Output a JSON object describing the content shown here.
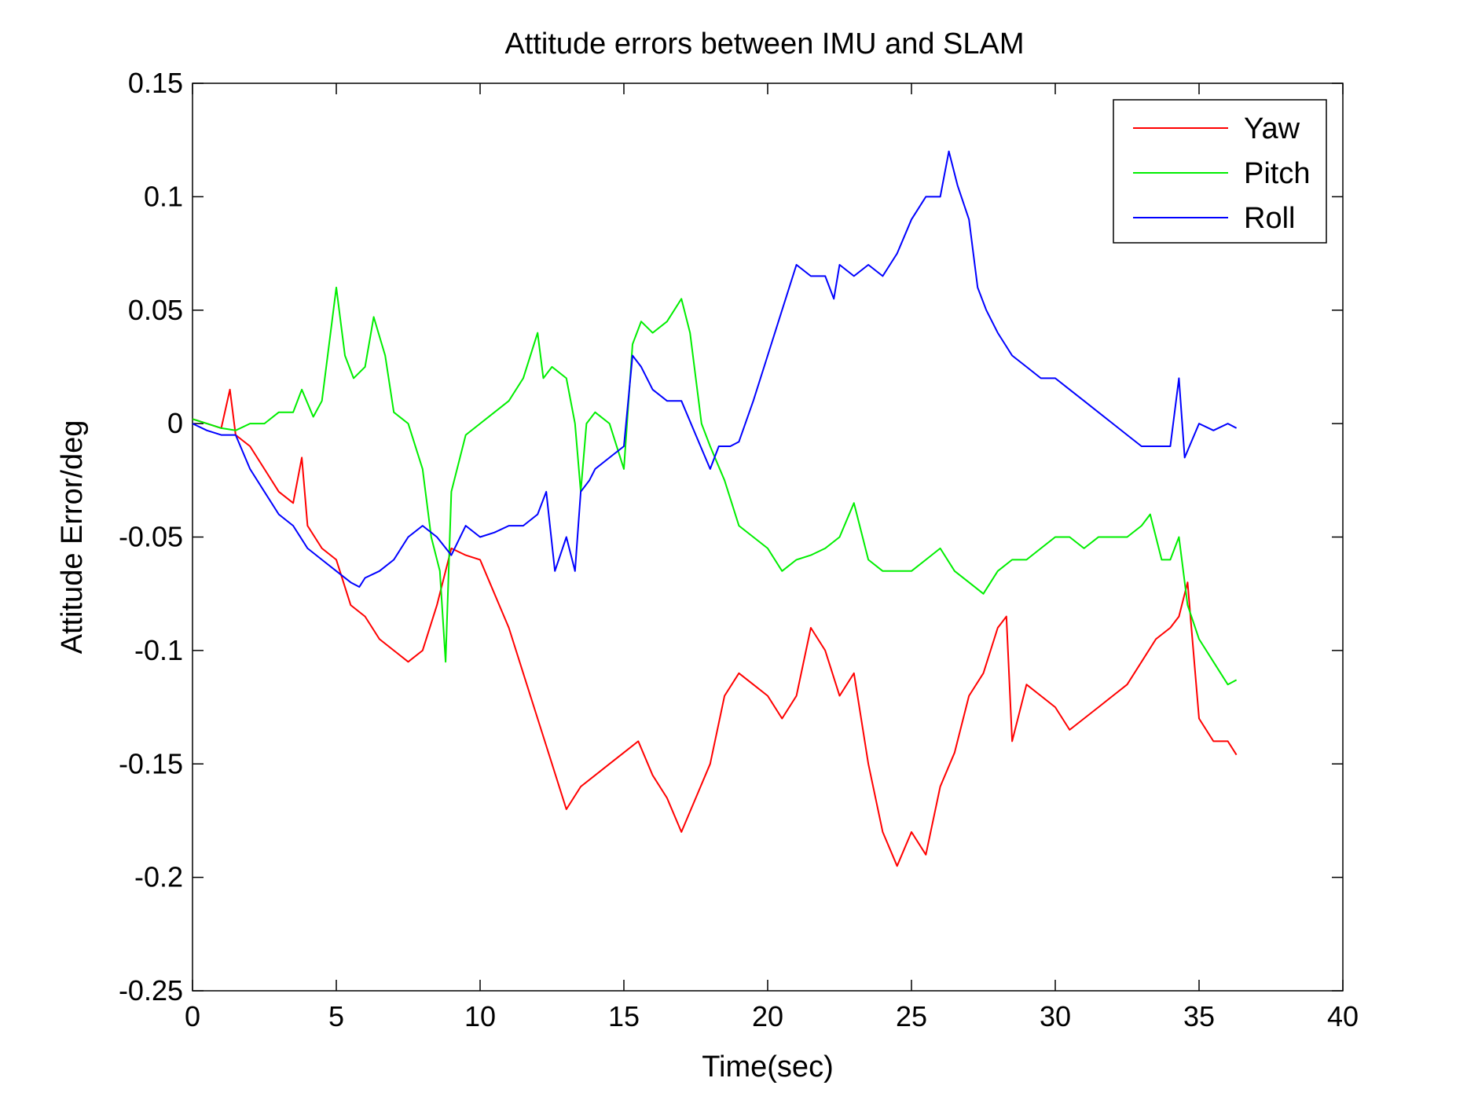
{
  "chart_data": {
    "type": "line",
    "title": "Attitude errors between IMU and SLAM",
    "xlabel": "Time(sec)",
    "ylabel": "Attitude Error/deg",
    "xlim": [
      0,
      40
    ],
    "ylim": [
      -0.25,
      0.15
    ],
    "xticks": [
      0,
      5,
      10,
      15,
      20,
      25,
      30,
      35,
      40
    ],
    "xtick_labels": [
      "0",
      "5",
      "10",
      "15",
      "20",
      "25",
      "30",
      "35",
      "40"
    ],
    "yticks": [
      0.15,
      0.1,
      0.05,
      0,
      -0.05,
      -0.1,
      -0.15,
      -0.2,
      -0.25
    ],
    "ytick_labels": [
      "0.15",
      "0.1",
      "0.05",
      "0",
      "-0.05",
      "-0.1",
      "-0.15",
      "-0.2",
      "-0.25"
    ],
    "grid": false,
    "legend_position": "top-right",
    "series": [
      {
        "name": "Yaw",
        "color": "#ff0000",
        "x": [
          0,
          0.5,
          1.0,
          1.3,
          1.5,
          2.0,
          2.5,
          3.0,
          3.5,
          3.8,
          4.0,
          4.5,
          5.0,
          5.5,
          6.0,
          6.5,
          7.0,
          7.5,
          8.0,
          8.5,
          9.0,
          9.5,
          10.0,
          10.5,
          11.0,
          11.5,
          12.0,
          12.5,
          13.0,
          13.5,
          14.0,
          14.5,
          15.0,
          15.5,
          16.0,
          16.5,
          17.0,
          17.5,
          18.0,
          18.5,
          19.0,
          19.5,
          20.0,
          20.5,
          21.0,
          21.5,
          22.0,
          22.5,
          23.0,
          23.5,
          24.0,
          24.5,
          25.0,
          25.5,
          26.0,
          26.5,
          27.0,
          27.5,
          28.0,
          28.3,
          28.5,
          29.0,
          29.5,
          30.0,
          30.5,
          31.0,
          31.5,
          32.0,
          32.5,
          33.0,
          33.5,
          34.0,
          34.3,
          34.6,
          35.0,
          35.5,
          36.0,
          36.3
        ],
        "y": [
          0.002,
          0.0,
          -0.002,
          0.015,
          -0.005,
          -0.01,
          -0.02,
          -0.03,
          -0.035,
          -0.015,
          -0.045,
          -0.055,
          -0.06,
          -0.08,
          -0.085,
          -0.095,
          -0.1,
          -0.105,
          -0.1,
          -0.08,
          -0.055,
          -0.058,
          -0.06,
          -0.075,
          -0.09,
          -0.11,
          -0.13,
          -0.15,
          -0.17,
          -0.16,
          -0.155,
          -0.15,
          -0.145,
          -0.14,
          -0.155,
          -0.165,
          -0.18,
          -0.165,
          -0.15,
          -0.12,
          -0.11,
          -0.115,
          -0.12,
          -0.13,
          -0.12,
          -0.09,
          -0.1,
          -0.12,
          -0.11,
          -0.15,
          -0.18,
          -0.195,
          -0.18,
          -0.19,
          -0.16,
          -0.145,
          -0.12,
          -0.11,
          -0.09,
          -0.085,
          -0.14,
          -0.115,
          -0.12,
          -0.125,
          -0.135,
          -0.13,
          -0.125,
          -0.12,
          -0.115,
          -0.105,
          -0.095,
          -0.09,
          -0.085,
          -0.07,
          -0.13,
          -0.14,
          -0.14,
          -0.146
        ]
      },
      {
        "name": "Pitch",
        "color": "#00ee00",
        "x": [
          0,
          0.5,
          1.0,
          1.5,
          2.0,
          2.5,
          3.0,
          3.5,
          3.8,
          4.2,
          4.5,
          5.0,
          5.3,
          5.6,
          6.0,
          6.3,
          6.7,
          7.0,
          7.5,
          8.0,
          8.3,
          8.6,
          8.8,
          9.0,
          9.5,
          10.0,
          10.5,
          11.0,
          11.5,
          12.0,
          12.2,
          12.5,
          13.0,
          13.3,
          13.5,
          13.7,
          14.0,
          14.5,
          15.0,
          15.3,
          15.6,
          16.0,
          16.5,
          17.0,
          17.3,
          17.7,
          18.0,
          18.5,
          19.0,
          19.5,
          20.0,
          20.5,
          21.0,
          21.5,
          22.0,
          22.5,
          23.0,
          23.5,
          24.0,
          24.5,
          25.0,
          25.5,
          26.0,
          26.5,
          27.0,
          27.5,
          28.0,
          28.5,
          29.0,
          29.5,
          30.0,
          30.5,
          31.0,
          31.5,
          32.0,
          32.5,
          33.0,
          33.3,
          33.7,
          34.0,
          34.3,
          34.6,
          35.0,
          35.5,
          36.0,
          36.3
        ],
        "y": [
          0.002,
          0.0,
          -0.002,
          -0.003,
          0.0,
          0.0,
          0.005,
          0.005,
          0.015,
          0.003,
          0.01,
          0.06,
          0.03,
          0.02,
          0.025,
          0.047,
          0.03,
          0.005,
          0.0,
          -0.02,
          -0.05,
          -0.065,
          -0.105,
          -0.03,
          -0.005,
          0.0,
          0.005,
          0.01,
          0.02,
          0.04,
          0.02,
          0.025,
          0.02,
          0.0,
          -0.03,
          0.0,
          0.005,
          0.0,
          -0.02,
          0.035,
          0.045,
          0.04,
          0.045,
          0.055,
          0.04,
          0.0,
          -0.01,
          -0.025,
          -0.045,
          -0.05,
          -0.055,
          -0.065,
          -0.06,
          -0.058,
          -0.055,
          -0.05,
          -0.035,
          -0.06,
          -0.065,
          -0.065,
          -0.065,
          -0.06,
          -0.055,
          -0.065,
          -0.07,
          -0.075,
          -0.065,
          -0.06,
          -0.06,
          -0.055,
          -0.05,
          -0.05,
          -0.055,
          -0.05,
          -0.05,
          -0.05,
          -0.045,
          -0.04,
          -0.06,
          -0.06,
          -0.05,
          -0.08,
          -0.095,
          -0.105,
          -0.115,
          -0.113
        ]
      },
      {
        "name": "Roll",
        "color": "#0000ff",
        "x": [
          0,
          0.5,
          1.0,
          1.5,
          2.0,
          2.5,
          3.0,
          3.5,
          4.0,
          4.5,
          5.0,
          5.5,
          5.8,
          6.0,
          6.5,
          7.0,
          7.5,
          8.0,
          8.5,
          9.0,
          9.5,
          10.0,
          10.5,
          11.0,
          11.5,
          12.0,
          12.3,
          12.6,
          13.0,
          13.3,
          13.5,
          13.8,
          14.0,
          14.5,
          15.0,
          15.3,
          15.6,
          16.0,
          16.5,
          17.0,
          17.5,
          18.0,
          18.3,
          18.7,
          19.0,
          19.5,
          20.0,
          20.5,
          21.0,
          21.5,
          22.0,
          22.3,
          22.5,
          23.0,
          23.5,
          24.0,
          24.5,
          25.0,
          25.5,
          26.0,
          26.3,
          26.6,
          27.0,
          27.3,
          27.6,
          28.0,
          28.5,
          29.0,
          29.5,
          30.0,
          30.5,
          31.0,
          31.5,
          32.0,
          32.5,
          33.0,
          33.5,
          34.0,
          34.3,
          34.5,
          35.0,
          35.5,
          36.0,
          36.3
        ],
        "y": [
          0.0,
          -0.003,
          -0.005,
          -0.005,
          -0.02,
          -0.03,
          -0.04,
          -0.045,
          -0.055,
          -0.06,
          -0.065,
          -0.07,
          -0.072,
          -0.068,
          -0.065,
          -0.06,
          -0.05,
          -0.045,
          -0.05,
          -0.058,
          -0.045,
          -0.05,
          -0.048,
          -0.045,
          -0.045,
          -0.04,
          -0.03,
          -0.065,
          -0.05,
          -0.065,
          -0.03,
          -0.025,
          -0.02,
          -0.015,
          -0.01,
          0.03,
          0.025,
          0.015,
          0.01,
          0.01,
          -0.005,
          -0.02,
          -0.01,
          -0.01,
          -0.008,
          0.01,
          0.03,
          0.05,
          0.07,
          0.065,
          0.065,
          0.055,
          0.07,
          0.065,
          0.07,
          0.065,
          0.075,
          0.09,
          0.1,
          0.1,
          0.12,
          0.105,
          0.09,
          0.06,
          0.05,
          0.04,
          0.03,
          0.025,
          0.02,
          0.02,
          0.015,
          0.01,
          0.005,
          0.0,
          -0.005,
          -0.01,
          -0.01,
          -0.01,
          0.02,
          -0.015,
          0.0,
          -0.003,
          0.0,
          -0.002
        ]
      }
    ]
  }
}
